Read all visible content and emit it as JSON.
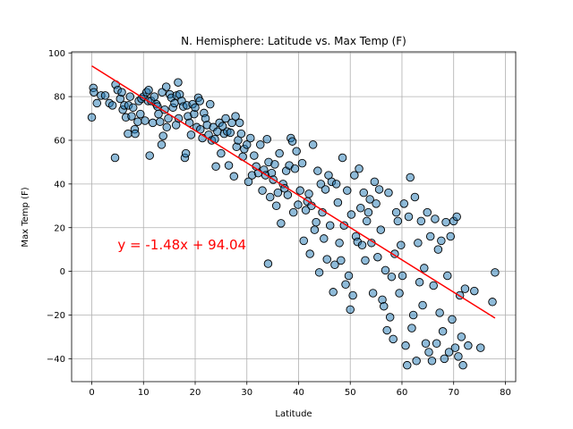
{
  "chart_data": {
    "type": "scatter",
    "title": "N. Hemisphere: Latitude vs. Max Temp (F)",
    "xlabel": "Latitude",
    "ylabel": "Max Temp (F)",
    "xlim": [
      -3.9,
      82
    ],
    "ylim": [
      -50.5,
      100.5
    ],
    "xticks": [
      0,
      10,
      20,
      30,
      40,
      50,
      60,
      70,
      80
    ],
    "yticks": [
      -40,
      -20,
      0,
      20,
      40,
      60,
      80,
      100
    ],
    "grid": true,
    "point_color": "#1f77b4",
    "line_color": "#ff0000",
    "regression": {
      "slope": -1.48,
      "intercept": 94.04,
      "x_range": [
        0.0,
        78.0
      ]
    },
    "annotation": {
      "text": "y = -1.48x + 94.04",
      "x": 5.0,
      "y": 10.0,
      "color": "#ff0000"
    },
    "points": [
      [
        0.0,
        70.5
      ],
      [
        0.3,
        84.0
      ],
      [
        0.4,
        82.0
      ],
      [
        1.0,
        77.0
      ],
      [
        1.8,
        80.5
      ],
      [
        2.6,
        80.5
      ],
      [
        3.4,
        77.0
      ],
      [
        4.0,
        76.0
      ],
      [
        4.6,
        85.5
      ],
      [
        4.5,
        52.0
      ],
      [
        5.0,
        83.0
      ],
      [
        5.5,
        79.0
      ],
      [
        5.8,
        82.0
      ],
      [
        6.0,
        74.0
      ],
      [
        6.3,
        76.0
      ],
      [
        6.6,
        70.5
      ],
      [
        7.0,
        63.0
      ],
      [
        7.1,
        76.0
      ],
      [
        7.4,
        80.0
      ],
      [
        7.7,
        71.0
      ],
      [
        8.0,
        75.0
      ],
      [
        8.3,
        65.0
      ],
      [
        8.4,
        63.0
      ],
      [
        8.9,
        68.5
      ],
      [
        9.1,
        78.0
      ],
      [
        9.4,
        72.0
      ],
      [
        9.6,
        79.0
      ],
      [
        10.0,
        80.0
      ],
      [
        10.3,
        69.0
      ],
      [
        10.6,
        82.0
      ],
      [
        10.9,
        78.0
      ],
      [
        11.0,
        83.0
      ],
      [
        11.2,
        53.0
      ],
      [
        11.5,
        78.0
      ],
      [
        11.8,
        68.0
      ],
      [
        12.1,
        80.0
      ],
      [
        12.5,
        76.5
      ],
      [
        12.7,
        75.5
      ],
      [
        12.9,
        72.0
      ],
      [
        13.2,
        68.5
      ],
      [
        13.5,
        58.0
      ],
      [
        13.6,
        82.0
      ],
      [
        13.8,
        62.0
      ],
      [
        14.1,
        74.0
      ],
      [
        14.4,
        84.5
      ],
      [
        14.5,
        66.0
      ],
      [
        14.8,
        70.0
      ],
      [
        15.1,
        81.0
      ],
      [
        15.4,
        79.5
      ],
      [
        15.7,
        75.0
      ],
      [
        16.0,
        77.0
      ],
      [
        16.3,
        67.0
      ],
      [
        16.4,
        80.5
      ],
      [
        16.7,
        86.5
      ],
      [
        16.8,
        70.0
      ],
      [
        17.0,
        81.0
      ],
      [
        17.4,
        78.0
      ],
      [
        17.7,
        75.5
      ],
      [
        18.0,
        52.0
      ],
      [
        18.2,
        54.0
      ],
      [
        18.4,
        76.0
      ],
      [
        18.6,
        71.0
      ],
      [
        18.9,
        68.0
      ],
      [
        19.2,
        62.5
      ],
      [
        19.5,
        76.5
      ],
      [
        19.8,
        72.0
      ],
      [
        20.0,
        75.0
      ],
      [
        20.3,
        66.0
      ],
      [
        20.6,
        79.5
      ],
      [
        20.9,
        78.0
      ],
      [
        21.0,
        65.0
      ],
      [
        21.4,
        61.0
      ],
      [
        21.7,
        72.5
      ],
      [
        22.0,
        70.0
      ],
      [
        22.3,
        67.0
      ],
      [
        22.6,
        62.5
      ],
      [
        22.9,
        76.5
      ],
      [
        23.2,
        60.0
      ],
      [
        23.5,
        66.0
      ],
      [
        23.8,
        60.5
      ],
      [
        24.0,
        48.0
      ],
      [
        24.3,
        64.0
      ],
      [
        24.7,
        68.0
      ],
      [
        25.0,
        54.0
      ],
      [
        25.3,
        66.5
      ],
      [
        25.6,
        63.0
      ],
      [
        25.9,
        70.0
      ],
      [
        26.2,
        64.0
      ],
      [
        26.5,
        48.5
      ],
      [
        26.8,
        63.5
      ],
      [
        27.1,
        68.0
      ],
      [
        27.5,
        43.5
      ],
      [
        27.8,
        71.0
      ],
      [
        28.0,
        57.0
      ],
      [
        28.3,
        60.0
      ],
      [
        28.6,
        68.0
      ],
      [
        28.9,
        63.0
      ],
      [
        29.2,
        52.5
      ],
      [
        29.5,
        56.0
      ],
      [
        30.0,
        58.0
      ],
      [
        30.3,
        41.0
      ],
      [
        30.7,
        61.0
      ],
      [
        31.0,
        44.0
      ],
      [
        31.4,
        53.0
      ],
      [
        31.8,
        48.0
      ],
      [
        32.2,
        45.0
      ],
      [
        32.6,
        58.0
      ],
      [
        33.0,
        37.0
      ],
      [
        33.3,
        46.5
      ],
      [
        33.6,
        44.0
      ],
      [
        33.9,
        60.5
      ],
      [
        34.1,
        3.5
      ],
      [
        34.2,
        50.0
      ],
      [
        34.5,
        34.0
      ],
      [
        34.8,
        45.0
      ],
      [
        35.1,
        42.0
      ],
      [
        35.4,
        49.0
      ],
      [
        35.7,
        30.0
      ],
      [
        36.0,
        36.0
      ],
      [
        36.3,
        54.0
      ],
      [
        36.6,
        22.0
      ],
      [
        37.0,
        40.0
      ],
      [
        37.3,
        38.0
      ],
      [
        37.6,
        46.0
      ],
      [
        37.9,
        35.0
      ],
      [
        38.2,
        48.5
      ],
      [
        38.5,
        61.0
      ],
      [
        38.8,
        59.5
      ],
      [
        39.0,
        27.0
      ],
      [
        39.3,
        47.0
      ],
      [
        39.6,
        55.0
      ],
      [
        39.9,
        30.5
      ],
      [
        40.3,
        37.0
      ],
      [
        40.7,
        49.5
      ],
      [
        41.0,
        14.0
      ],
      [
        41.4,
        28.0
      ],
      [
        41.7,
        32.0
      ],
      [
        42.0,
        35.5
      ],
      [
        42.2,
        8.0
      ],
      [
        42.5,
        30.0
      ],
      [
        42.8,
        58.0
      ],
      [
        43.1,
        19.0
      ],
      [
        43.4,
        22.5
      ],
      [
        43.7,
        46.0
      ],
      [
        44.0,
        -0.5
      ],
      [
        44.3,
        40.0
      ],
      [
        44.6,
        27.0
      ],
      [
        44.9,
        15.0
      ],
      [
        45.2,
        37.5
      ],
      [
        45.5,
        5.5
      ],
      [
        45.8,
        44.0
      ],
      [
        46.1,
        21.0
      ],
      [
        46.4,
        41.0
      ],
      [
        46.7,
        -9.5
      ],
      [
        47.0,
        3.0
      ],
      [
        47.3,
        40.0
      ],
      [
        47.6,
        31.5
      ],
      [
        47.9,
        13.0
      ],
      [
        48.2,
        5.0
      ],
      [
        48.5,
        52.0
      ],
      [
        48.8,
        21.0
      ],
      [
        49.1,
        -6.0
      ],
      [
        49.4,
        37.0
      ],
      [
        49.7,
        -2.0
      ],
      [
        50.0,
        -17.5
      ],
      [
        50.2,
        26.0
      ],
      [
        50.5,
        -11.0
      ],
      [
        50.8,
        44.0
      ],
      [
        51.1,
        16.0
      ],
      [
        51.4,
        13.5
      ],
      [
        51.7,
        47.0
      ],
      [
        52.0,
        29.0
      ],
      [
        52.3,
        12.0
      ],
      [
        52.6,
        36.0
      ],
      [
        52.9,
        5.0
      ],
      [
        53.2,
        23.0
      ],
      [
        53.5,
        27.0
      ],
      [
        53.8,
        33.0
      ],
      [
        54.1,
        13.0
      ],
      [
        54.4,
        -10.0
      ],
      [
        54.7,
        41.0
      ],
      [
        55.0,
        31.0
      ],
      [
        55.3,
        6.5
      ],
      [
        55.6,
        37.5
      ],
      [
        55.9,
        19.0
      ],
      [
        56.2,
        -13.0
      ],
      [
        56.5,
        -16.0
      ],
      [
        56.8,
        0.5
      ],
      [
        57.1,
        -27.0
      ],
      [
        57.4,
        36.0
      ],
      [
        57.7,
        -21.0
      ],
      [
        58.0,
        -2.5
      ],
      [
        58.3,
        -31.0
      ],
      [
        58.6,
        8.0
      ],
      [
        58.9,
        27.0
      ],
      [
        59.2,
        23.0
      ],
      [
        59.5,
        -10.0
      ],
      [
        59.8,
        12.0
      ],
      [
        60.1,
        -2.0
      ],
      [
        60.4,
        31.0
      ],
      [
        60.7,
        -34.0
      ],
      [
        61.0,
        -43.0
      ],
      [
        61.3,
        25.0
      ],
      [
        61.6,
        43.0
      ],
      [
        61.9,
        -26.0
      ],
      [
        62.2,
        -20.0
      ],
      [
        62.5,
        34.0
      ],
      [
        62.8,
        -41.0
      ],
      [
        63.1,
        13.0
      ],
      [
        63.4,
        -5.0
      ],
      [
        63.7,
        23.0
      ],
      [
        64.0,
        -15.5
      ],
      [
        64.3,
        1.5
      ],
      [
        64.6,
        -33.0
      ],
      [
        64.9,
        27.0
      ],
      [
        65.2,
        -37.0
      ],
      [
        65.5,
        16.0
      ],
      [
        65.8,
        -41.0
      ],
      [
        66.1,
        -6.5
      ],
      [
        66.4,
        24.0
      ],
      [
        66.7,
        -33.0
      ],
      [
        67.0,
        10.0
      ],
      [
        67.3,
        -19.0
      ],
      [
        67.6,
        14.0
      ],
      [
        67.9,
        -27.5
      ],
      [
        68.2,
        -40.0
      ],
      [
        68.5,
        22.5
      ],
      [
        68.8,
        -2.0
      ],
      [
        69.1,
        -37.0
      ],
      [
        69.4,
        16.0
      ],
      [
        69.7,
        -22.0
      ],
      [
        70.0,
        23.0
      ],
      [
        70.3,
        -35.0
      ],
      [
        70.6,
        25.0
      ],
      [
        70.9,
        -39.0
      ],
      [
        71.2,
        -11.0
      ],
      [
        71.5,
        -30.0
      ],
      [
        71.8,
        -43.0
      ],
      [
        72.2,
        -8.0
      ],
      [
        72.8,
        -34.0
      ],
      [
        74.0,
        -9.0
      ],
      [
        75.2,
        -35.0
      ],
      [
        77.5,
        -14.0
      ],
      [
        78.0,
        -0.5
      ]
    ]
  }
}
